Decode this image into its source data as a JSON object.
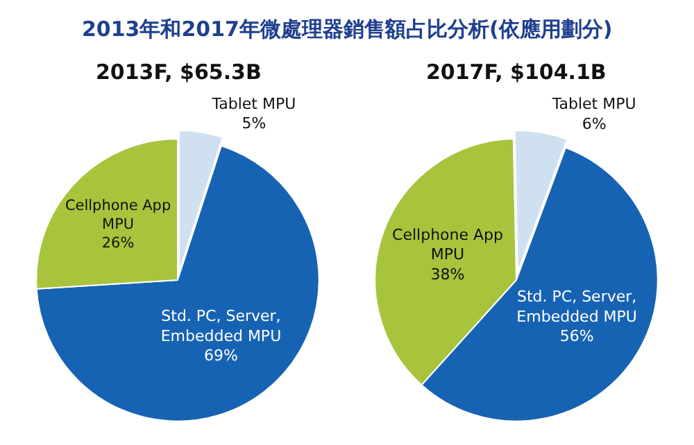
{
  "chart_data": [
    {
      "type": "pie",
      "title": "2013F, $65.3B",
      "value_labels": [
        "5%",
        "69%",
        "26%"
      ],
      "annotations": [
        "2013年和2017年微處理器銷售額占比分析(依應用劃分)"
      ],
      "categories": [
        "Tablet MPU",
        "Std. PC, Server, Embedded MPU",
        "Cellphone App MPU"
      ],
      "values": [
        5,
        69,
        26
      ],
      "colors": [
        "#cfe0f0",
        "#1763b3",
        "#a8c43c"
      ]
    },
    {
      "type": "pie",
      "title": "2017F, $104.1B",
      "value_labels": [
        "38%",
        "6%",
        "56%"
      ],
      "categories": [
        "Cellphone App MPU",
        "Tablet MPU",
        "Std. PC, Server, Embedded MPU"
      ],
      "values": [
        38,
        6,
        56
      ],
      "colors": [
        "#a8c43c",
        "#cfe0f0",
        "#1763b3"
      ]
    }
  ]
}
